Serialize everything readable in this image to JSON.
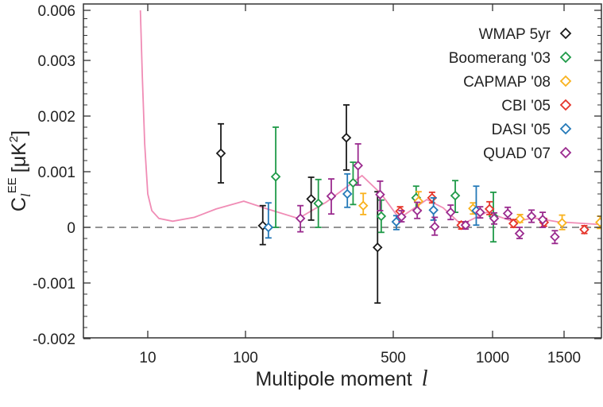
{
  "chart_data": {
    "type": "scatter",
    "title": "",
    "xlabel": "Multipole moment",
    "xlabel_symbol": "l",
    "ylabel": {
      "main": "C",
      "sub": "l",
      "sup": "EE",
      "unit": "[μK",
      "unit_sup": "2",
      "unit_close": "]"
    },
    "xscale": "log below 100, compressed (square-root-like) above 100",
    "xlim": [
      2.2,
      1800
    ],
    "ylim": [
      -0.002,
      0.006
    ],
    "x_ticks": [
      10,
      100,
      500,
      1000,
      1500
    ],
    "x_tick_labels": [
      "10",
      "100",
      "500",
      "1000",
      "1500"
    ],
    "y_ticks": [
      0.006,
      0.003,
      0.002,
      0.001,
      0,
      -0.001,
      -0.002
    ],
    "y_tick_labels": [
      "0.006",
      "0.003",
      "0.002",
      "0.001",
      "0",
      "-0.001",
      "-0.002"
    ],
    "zero_line": "dashed",
    "grid": false,
    "legend_position": "top-right",
    "point_format": [
      "l",
      "value",
      "err_low",
      "err_high"
    ],
    "series": [
      {
        "name": "WMAP 5yr",
        "color": "#1a1a1a",
        "points": [
          [
            56,
            0.00133,
            0.0008,
            0.00186
          ],
          [
            131,
            3e-05,
            -0.00031,
            0.00039
          ],
          [
            240,
            0.00051,
            0.00013,
            0.0009
          ],
          [
            340,
            0.00161,
            0.00103,
            0.0022
          ],
          [
            443,
            -0.00036,
            -0.00136,
            0.00064
          ]
        ]
      },
      {
        "name": "Boomerang '03",
        "color": "#1f9a48",
        "points": [
          [
            157,
            0.00091,
            0,
            0.0018
          ],
          [
            259,
            0.00043,
            0,
            0.00086
          ],
          [
            361,
            0.0008,
            0.00041,
            0.00117
          ],
          [
            456,
            0.0002,
            -9e-05,
            0.00049
          ],
          [
            600,
            0.00053,
            0.00031,
            0.00074
          ],
          [
            792,
            0.00057,
            0.00027,
            0.00084
          ],
          [
            1005,
            0.0002,
            -0.00026,
            0.00063
          ]
        ]
      },
      {
        "name": "CAPMAP '08",
        "color": "#f9b21e",
        "points": [
          [
            394,
            0.00039,
            0.00023,
            0.00061
          ],
          [
            611,
            0.00047,
            0.00031,
            0.00064
          ],
          [
            888,
            0.00034,
            0.00024,
            0.00044
          ],
          [
            1180,
            0.00015,
            9e-05,
            0.00023
          ],
          [
            1485,
            8e-05,
            -4e-05,
            0.00022
          ],
          [
            1790,
            9e-05,
            -2e-05,
            0.0002
          ]
        ]
      },
      {
        "name": "CBI '05",
        "color": "#e5352b",
        "points": [
          [
            529,
            0.00029,
            0.0002,
            0.00037
          ],
          [
            675,
            0.00053,
            0.00044,
            0.00063
          ],
          [
            824,
            4e-05,
            -3e-05,
            0.0001
          ],
          [
            982,
            0.00033,
            0.00023,
            0.00046
          ],
          [
            1135,
            7e-05,
            0,
            0.00014
          ],
          [
            1350,
            9e-05,
            2e-05,
            0.00016
          ],
          [
            1660,
            -4e-05,
            -0.00011,
            3e-05
          ]
        ]
      },
      {
        "name": "DASI '05",
        "color": "#2479b8",
        "points": [
          [
            142,
            0,
            -0.00019,
            0.00044
          ],
          [
            343,
            0.0006,
            0.00036,
            0.00096
          ],
          [
            513,
            0.0001,
            -4e-05,
            0.00021
          ],
          [
            682,
            0.00031,
            0.00013,
            0.00053
          ],
          [
            906,
            0.0003,
            4e-05,
            0.00074
          ]
        ]
      },
      {
        "name": "QUAD '07",
        "color": "#9a2a8e",
        "points": [
          [
            213,
            0.00016,
            -8e-05,
            0.00039
          ],
          [
            295,
            0.00056,
            0.00024,
            0.00087
          ],
          [
            377,
            0.00111,
            0.00076,
            0.0015
          ],
          [
            452,
            0.00059,
            0.0003,
            0.00083
          ],
          [
            535,
            0.00019,
            0.0001,
            0.0003
          ],
          [
            605,
            0.0003,
            0.00016,
            0.00045
          ],
          [
            688,
            1e-05,
            -0.00014,
            0.00018
          ],
          [
            768,
            0.00027,
            0.00014,
            0.0004
          ],
          [
            847,
            4e-05,
            -3e-05,
            0.0001
          ],
          [
            928,
            0.00027,
            0.00017,
            0.00037
          ],
          [
            1010,
            0.00016,
            6e-05,
            0.00026
          ],
          [
            1098,
            0.00025,
            0.00016,
            0.00036
          ],
          [
            1177,
            -0.00011,
            -0.0002,
            0
          ],
          [
            1260,
            0.0002,
            9e-05,
            0.00031
          ],
          [
            1340,
            0.00014,
            0,
            0.00027
          ],
          [
            1430,
            -0.00017,
            -0.00029,
            -6e-05
          ]
        ]
      }
    ],
    "theory_curve": {
      "color": "#f08cb5",
      "points": [
        [
          8.4,
          0.006
        ],
        [
          8.8,
          0.0027
        ],
        [
          9.3,
          0.0015
        ],
        [
          10,
          0.0006
        ],
        [
          11,
          0.0003
        ],
        [
          13,
          0.00016
        ],
        [
          18,
          0.00011
        ],
        [
          30,
          0.00018
        ],
        [
          50,
          0.00033
        ],
        [
          96,
          0.00047
        ],
        [
          140,
          0.00033
        ],
        [
          208,
          0.00016
        ],
        [
          280,
          0.00045
        ],
        [
          390,
          0.00093
        ],
        [
          456,
          0.0006
        ],
        [
          525,
          0.00016
        ],
        [
          650,
          0.0005
        ],
        [
          730,
          0.00035
        ],
        [
          824,
          5e-05
        ],
        [
          965,
          0.00027
        ],
        [
          1140,
          0.0001
        ],
        [
          1275,
          0.00017
        ],
        [
          1450,
          0.0001
        ],
        [
          1800,
          5e-05
        ]
      ]
    }
  }
}
